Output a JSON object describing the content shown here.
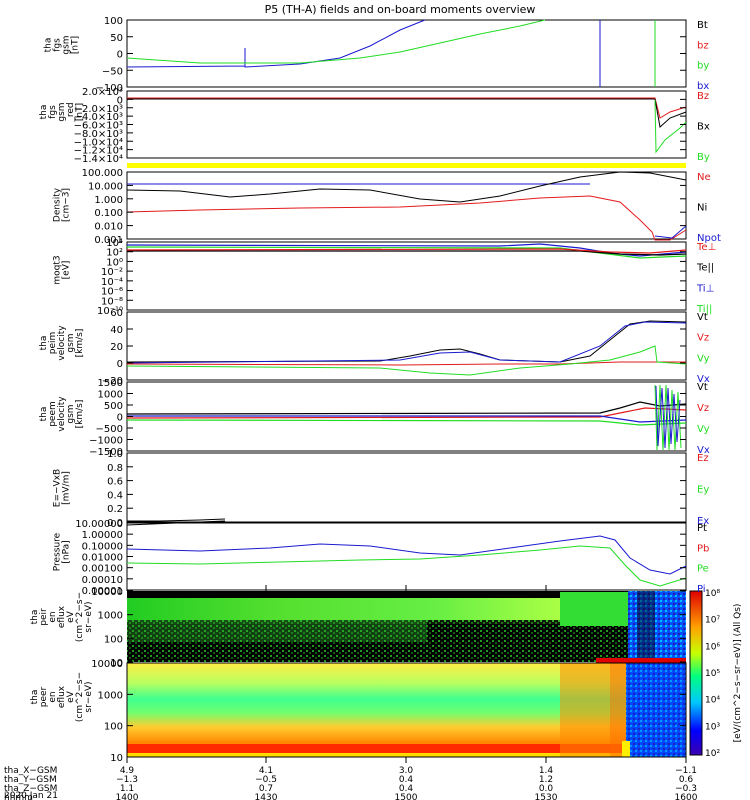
{
  "title": "P5 (TH-A) fields and on-board moments overview",
  "colors": {
    "black": "#000000",
    "red": "#e31a1c",
    "green": "#22dd22",
    "blue": "#1a1ad0",
    "yellow": "#ffff00"
  },
  "chart_data": [
    {
      "type": "line",
      "ylabel": [
        "tha",
        "fgs",
        "gsm",
        "[nT]"
      ],
      "yticks": [
        "100",
        "50",
        "0",
        "−50",
        "−100"
      ],
      "ylim": [
        -100,
        100
      ],
      "legend": [
        {
          "name": "Bt",
          "color": "black"
        },
        {
          "name": "bz",
          "color": "red"
        },
        {
          "name": "by",
          "color": "green"
        },
        {
          "name": "bx",
          "color": "blue"
        }
      ],
      "series": [
        {
          "name": "bx",
          "color": "blue",
          "x": [
            0,
            30,
            45,
            55,
            65,
            75,
            80,
            84
          ],
          "y": [
            -45,
            -43,
            -38,
            -25,
            5,
            50,
            100,
            100
          ]
        },
        {
          "name": "by",
          "color": "green",
          "x": [
            0,
            30,
            50,
            60,
            70,
            75,
            78,
            80
          ],
          "y": [
            -17,
            -25,
            -25,
            -12,
            18,
            55,
            85,
            100
          ]
        }
      ]
    },
    {
      "type": "line",
      "ylabel": [
        "tha",
        "fgs",
        "gsm",
        "_red",
        "[nT]"
      ],
      "yticks": [
        "2.0×10³",
        "0",
        "−2.0×10³",
        "−4.0×10³",
        "−6.0×10³",
        "−8.0×10³",
        "−1.0×10⁴",
        "−1.2×10⁴",
        "−1.4×10⁴"
      ],
      "legend": [
        {
          "name": "Bz",
          "color": "red"
        },
        {
          "name": "Bx",
          "color": "black"
        },
        {
          "name": "By",
          "color": "green"
        }
      ]
    },
    {
      "type": "line",
      "ylabel": [
        "Density",
        "[cm−3]"
      ],
      "yticks": [
        "100.000",
        "10.000",
        "1.000",
        "0.100",
        "0.010",
        "0.001"
      ],
      "legend": [
        {
          "name": "Ne",
          "color": "red"
        },
        {
          "name": "Ni",
          "color": "black"
        },
        {
          "name": "Npot",
          "color": "blue"
        }
      ]
    },
    {
      "type": "line",
      "ylabel": [
        "moqt3",
        "[eV]"
      ],
      "yticks": [
        "10⁴",
        "10²",
        "10⁰",
        "10⁻²",
        "10⁻⁴",
        "10⁻⁶",
        "10⁻⁸",
        "10⁻¹⁰"
      ],
      "legend": [
        {
          "name": "Te⊥",
          "color": "red"
        },
        {
          "name": "Te||",
          "color": "black"
        },
        {
          "name": "Ti⊥",
          "color": "blue"
        },
        {
          "name": "Ti||",
          "color": "green"
        }
      ]
    },
    {
      "type": "line",
      "ylabel": [
        "tha",
        "peim",
        "velocity",
        "gsm",
        "[km/s]"
      ],
      "yticks": [
        "60",
        "40",
        "20",
        "0",
        "−20"
      ],
      "legend": [
        {
          "name": "Vt",
          "color": "black"
        },
        {
          "name": "Vz",
          "color": "red"
        },
        {
          "name": "Vy",
          "color": "green"
        },
        {
          "name": "Vx",
          "color": "blue"
        }
      ]
    },
    {
      "type": "line",
      "ylabel": [
        "tha",
        "peem",
        "velocity",
        "gsm",
        "[km/s]"
      ],
      "yticks": [
        "1500",
        "1000",
        "500",
        "0",
        "−500",
        "−1000",
        "−1500"
      ],
      "legend": [
        {
          "name": "Vt",
          "color": "black"
        },
        {
          "name": "Vz",
          "color": "red"
        },
        {
          "name": "Vy",
          "color": "green"
        },
        {
          "name": "Vx",
          "color": "blue"
        }
      ]
    },
    {
      "type": "line",
      "ylabel": [
        "E=−VxB",
        "[mV/m]"
      ],
      "yticks": [
        "1.0",
        "0.8",
        "0.6",
        "0.4",
        "0.2",
        "0.0"
      ],
      "legend": [
        {
          "name": "Ez",
          "color": "red"
        },
        {
          "name": "Ey",
          "color": "green"
        },
        {
          "name": "Ex",
          "color": "blue"
        }
      ]
    },
    {
      "type": "line",
      "ylabel": [
        "Pressure",
        "[nPa]"
      ],
      "yticks": [
        "10.00000",
        "1.00000",
        "0.10000",
        "0.01000",
        "0.00100",
        "0.00010",
        "0.00001"
      ],
      "legend": [
        {
          "name": "Pt",
          "color": "black"
        },
        {
          "name": "Pb",
          "color": "red"
        },
        {
          "name": "Pe",
          "color": "green"
        },
        {
          "name": "Pi",
          "color": "blue"
        }
      ]
    },
    {
      "type": "heatmap",
      "ylabel": [
        "tha",
        "peir",
        "en",
        "eflux",
        "eV",
        "(cm^2−s−",
        "sr−eV)"
      ],
      "yticks": [
        "10000",
        "1000",
        "100",
        "10"
      ]
    },
    {
      "type": "heatmap",
      "ylabel": [
        "tha",
        "peer",
        "en",
        "eflux",
        "eV",
        "(cm^2−s−",
        "sr−eV)"
      ],
      "yticks": [
        "10000",
        "1000",
        "100",
        "10"
      ]
    }
  ],
  "colorbar": {
    "ticks": [
      "10⁸",
      "10⁷",
      "10⁶",
      "10⁵",
      "10⁴",
      "10³",
      "10²"
    ],
    "label": "[eV/(cm^2−s−sr−eV)] (All Qs)"
  },
  "xaxis": {
    "rows": [
      {
        "label": "tha_X−GSM",
        "values": [
          "4.9",
          "4.1",
          "3.0",
          "1.4",
          "−1.1"
        ]
      },
      {
        "label": "tha_Y−GSM",
        "values": [
          "−1.3",
          "−0.5",
          "0.4",
          "1.2",
          "0.6"
        ]
      },
      {
        "label": "tha_Z−GSM",
        "values": [
          "1.1",
          "0.7",
          "0.4",
          "0.0",
          "−0.3"
        ]
      },
      {
        "label": "hhmm",
        "values": [
          "1400",
          "1430",
          "1500",
          "1530",
          "1600"
        ]
      }
    ],
    "date": "2020 Jan 21"
  }
}
